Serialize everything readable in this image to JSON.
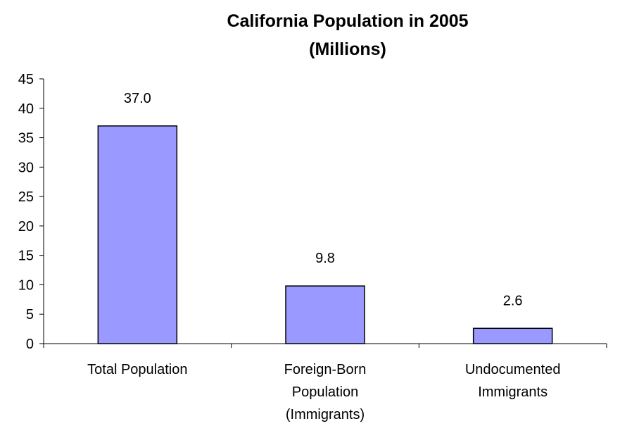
{
  "chart_data": {
    "type": "bar",
    "title_lines": [
      "California Population in 2005",
      "(Millions)"
    ],
    "categories": [
      [
        "Total Population"
      ],
      [
        "Foreign-Born",
        "Population",
        "(Immigrants)"
      ],
      [
        "Undocumented",
        "Immigrants"
      ]
    ],
    "values": [
      37.0,
      9.8,
      2.6
    ],
    "data_labels": [
      "37.0",
      "9.8",
      "2.6"
    ],
    "ylim": [
      0,
      45
    ],
    "yticks": [
      0,
      5,
      10,
      15,
      20,
      25,
      30,
      35,
      40,
      45
    ],
    "grid": false,
    "legend": "none",
    "colors": {
      "bar_fill": "#9999ff",
      "bar_stroke": "#000000",
      "axis": "#000000"
    }
  }
}
